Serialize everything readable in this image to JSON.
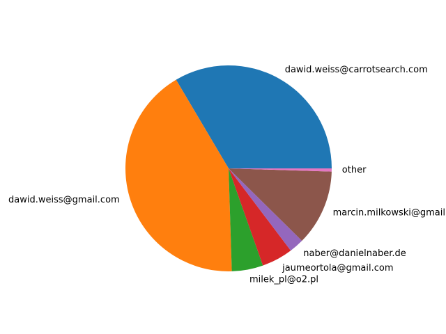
{
  "chart_data": {
    "type": "pie",
    "title": "",
    "start_angle_deg": 0,
    "direction": "counterclockwise",
    "slices": [
      {
        "label": "dawid.weiss@carrotsearch.com",
        "value": 33.5,
        "color": "#1f77b4"
      },
      {
        "label": "dawid.weiss@gmail.com",
        "value": 42.0,
        "color": "#ff7f0e"
      },
      {
        "label": "milek_pl@o2.pl",
        "value": 4.9,
        "color": "#2ca02c"
      },
      {
        "label": "jaumeortola@gmail.com",
        "value": 4.9,
        "color": "#d62728"
      },
      {
        "label": "naber@danielnaber.de",
        "value": 2.3,
        "color": "#9467bd"
      },
      {
        "label": "marcin.milkowski@gmail.com",
        "value": 11.9,
        "color": "#8c564b"
      },
      {
        "label": "other",
        "value": 0.5,
        "color": "#e377c2"
      }
    ]
  }
}
